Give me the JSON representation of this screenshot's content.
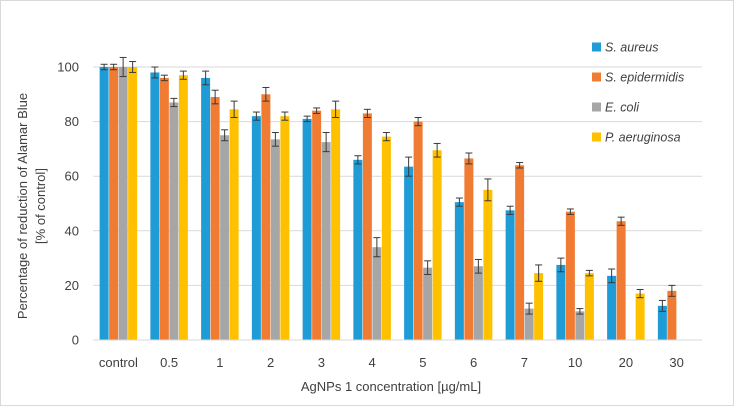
{
  "chart_data": {
    "type": "bar",
    "title": "",
    "xlabel": "AgNPs 1 concentration [µg/mL]",
    "ylabel_line1": "Percentage of reduction of Alamar Blue",
    "ylabel_line2": "[% of control]",
    "ylim": [
      0,
      100
    ],
    "yticks": [
      0,
      20,
      40,
      60,
      80,
      100
    ],
    "ytick_labels": [
      "0",
      "20",
      "40",
      "60",
      "80",
      "100"
    ],
    "grid": true,
    "legend_position": "top-right",
    "categories": [
      "control",
      "0.5",
      "1",
      "2",
      "3",
      "4",
      "5",
      "6",
      "7",
      "10",
      "20",
      "30"
    ],
    "series": [
      {
        "name": "S. aureus",
        "color": "#1F9BD6",
        "values": [
          100,
          98,
          96,
          82,
          81,
          66,
          63.5,
          50.5,
          47.5,
          27.5,
          23.5,
          12.5
        ],
        "errors": [
          1.0,
          2.0,
          2.5,
          1.5,
          1.0,
          1.5,
          3.5,
          1.5,
          1.5,
          2.5,
          2.5,
          2.0
        ]
      },
      {
        "name": "S. epidermidis",
        "color": "#F07B33",
        "values": [
          100,
          96,
          89,
          90,
          84,
          83,
          80,
          66.5,
          64,
          47,
          43.5,
          18
        ],
        "errors": [
          1.0,
          1.0,
          2.5,
          2.5,
          1.0,
          1.5,
          1.5,
          2.0,
          1.0,
          1.0,
          1.5,
          2.0
        ]
      },
      {
        "name": "E. coli",
        "color": "#A6A6A6",
        "values": [
          100,
          87,
          75,
          73.5,
          72.5,
          34,
          26.5,
          27,
          11.5,
          10.5,
          null,
          null
        ],
        "errors": [
          3.5,
          1.5,
          2.0,
          2.5,
          3.5,
          3.5,
          2.5,
          2.5,
          2.0,
          1.0,
          null,
          null
        ]
      },
      {
        "name": "P. aeruginosa",
        "color": "#FFC000",
        "values": [
          100,
          97,
          84.5,
          82,
          84.5,
          74.5,
          69.5,
          55,
          24.5,
          24.5,
          17,
          null
        ],
        "errors": [
          2.0,
          1.5,
          3.0,
          1.5,
          3.0,
          1.5,
          2.5,
          4.0,
          3.0,
          1.0,
          1.5,
          null
        ]
      }
    ]
  }
}
